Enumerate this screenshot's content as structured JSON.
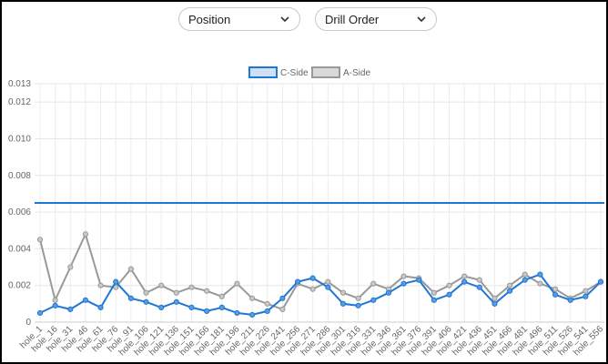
{
  "controls": {
    "dropdown_1": {
      "selected": "Position"
    },
    "dropdown_2": {
      "selected": "Drill Order"
    }
  },
  "chart_data": {
    "type": "line",
    "ylim": [
      0,
      0.013
    ],
    "yticks": [
      0,
      0.002,
      0.004,
      0.006,
      0.008,
      0.01,
      0.012,
      0.013
    ],
    "ytick_labels": [
      "0",
      "0.002",
      "0.004",
      "0.006",
      "0.008",
      "0.010",
      "0.012",
      "0.013"
    ],
    "categories": [
      "hole_1",
      "hole_16",
      "hole_31",
      "hole_46",
      "hole_61",
      "hole_76",
      "hole_91",
      "hole_106",
      "hole_121",
      "hole_136",
      "hole_151",
      "hole_166",
      "hole_181",
      "hole_196",
      "hole_211",
      "hole_226",
      "hole_241",
      "hole_256",
      "hole_271",
      "hole_286",
      "hole_301",
      "hole_316",
      "hole_331",
      "hole_346",
      "hole_361",
      "hole_376",
      "hole_391",
      "hole_406",
      "hole_421",
      "hole_436",
      "hole_451",
      "hole_466",
      "hole_481",
      "hole_496",
      "hole_511",
      "hole_526",
      "hole_541",
      "hole_556"
    ],
    "x_tick_labels": [
      "hole_1",
      "hole_16",
      "hole_31",
      "hole_46",
      "hole_61",
      "hole_76",
      "hole_91",
      "hole_106",
      "hole_121",
      "hole_136",
      "hole_151",
      "hole_166",
      "hole_181",
      "hole_196",
      "hole_211",
      "hole_226",
      "hole_241",
      "hole_256",
      "hole_271",
      "hole_286",
      "hole_301",
      "hole_316",
      "hole_331",
      "hole_346",
      "hole_361",
      "hole_376",
      "hole_391",
      "hole_406",
      "hole_421",
      "hole_436",
      "hole_451",
      "hole_466",
      "hole_481",
      "hole_496",
      "hole_511",
      "hole_526",
      "hole_541",
      "hole_556"
    ],
    "legend_position": "top-center",
    "grid": true,
    "series": [
      {
        "name": "C-Side",
        "color": "#1f77d4",
        "values": [
          0.0005,
          0.0009,
          0.0007,
          0.0012,
          0.0008,
          0.0022,
          0.0013,
          0.0011,
          0.0008,
          0.0011,
          0.0008,
          0.0006,
          0.0008,
          0.0005,
          0.0004,
          0.0006,
          0.0013,
          0.0022,
          0.0024,
          0.0019,
          0.001,
          0.0009,
          0.0012,
          0.0016,
          0.0021,
          0.0023,
          0.0012,
          0.0015,
          0.0022,
          0.0019,
          0.001,
          0.0017,
          0.0023,
          0.0026,
          0.0015,
          0.0012,
          0.0014,
          0.0022
        ]
      },
      {
        "name": "A-Side",
        "color": "#999999",
        "values": [
          0.0045,
          0.0012,
          0.003,
          0.0048,
          0.002,
          0.0019,
          0.0029,
          0.0016,
          0.002,
          0.0016,
          0.0019,
          0.0017,
          0.0014,
          0.0021,
          0.0013,
          0.001,
          0.0007,
          0.0021,
          0.0018,
          0.0022,
          0.0016,
          0.0013,
          0.0021,
          0.0018,
          0.0025,
          0.0024,
          0.0016,
          0.002,
          0.0025,
          0.0023,
          0.0013,
          0.002,
          0.0026,
          0.0021,
          0.0018,
          0.0013,
          0.0017,
          0.0022
        ]
      }
    ],
    "threshold": {
      "value": 0.0065,
      "color": "#1f77d4"
    }
  }
}
